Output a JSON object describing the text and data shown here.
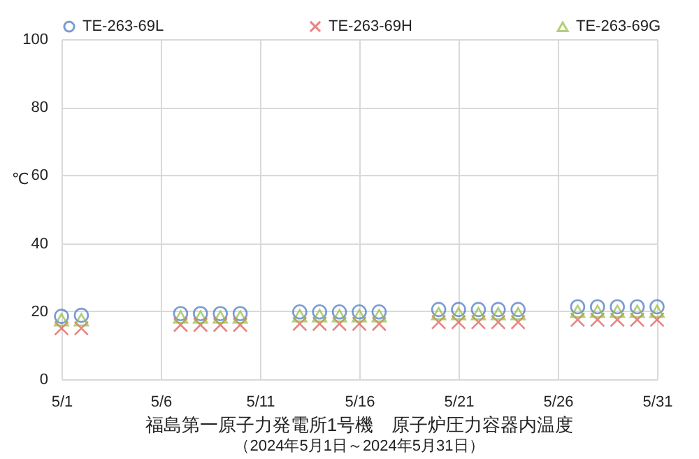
{
  "chart_data": {
    "type": "scatter",
    "title": "福島第一原子力発電所1号機　原子炉圧力容器内温度",
    "subtitle": "（2024年5月1日～2024年5月31日）",
    "ylabel": "℃",
    "x": [
      "2024-05-01",
      "2024-05-02",
      "2024-05-07",
      "2024-05-08",
      "2024-05-09",
      "2024-05-10",
      "2024-05-13",
      "2024-05-14",
      "2024-05-15",
      "2024-05-16",
      "2024-05-17",
      "2024-05-20",
      "2024-05-21",
      "2024-05-22",
      "2024-05-23",
      "2024-05-24",
      "2024-05-27",
      "2024-05-28",
      "2024-05-29",
      "2024-05-30",
      "2024-05-31"
    ],
    "series": [
      {
        "name": "TE-263-69L",
        "color": "#4472c4",
        "marker": "circle",
        "values": [
          18.5,
          18.8,
          19.3,
          19.3,
          19.3,
          19.3,
          19.8,
          19.8,
          19.8,
          19.8,
          19.8,
          20.5,
          20.5,
          20.5,
          20.5,
          20.5,
          21.3,
          21.3,
          21.3,
          21.3,
          21.3
        ]
      },
      {
        "name": "TE-263-69H",
        "color": "#e05050",
        "marker": "cross",
        "values": [
          15,
          15,
          16,
          16,
          16,
          16,
          16.3,
          16.3,
          16.3,
          16.3,
          16.3,
          16.8,
          16.8,
          16.8,
          16.8,
          16.8,
          17.5,
          17.5,
          17.5,
          17.5,
          17.5
        ]
      },
      {
        "name": "TE-263-69G",
        "color": "#8fbc3f",
        "marker": "triangle",
        "values": [
          17.5,
          17.5,
          18.3,
          18.3,
          18.3,
          18.3,
          18.7,
          18.7,
          18.7,
          18.7,
          18.7,
          19.3,
          19.3,
          19.3,
          19.3,
          19.3,
          20,
          20,
          20,
          20,
          20
        ]
      }
    ],
    "xlim": [
      "2024-05-01",
      "2024-05-31"
    ],
    "xticks": [
      {
        "value": "2024-05-01",
        "label": "5/1"
      },
      {
        "value": "2024-05-06",
        "label": "5/6"
      },
      {
        "value": "2024-05-11",
        "label": "5/11"
      },
      {
        "value": "2024-05-16",
        "label": "5/16"
      },
      {
        "value": "2024-05-21",
        "label": "5/21"
      },
      {
        "value": "2024-05-26",
        "label": "5/26"
      },
      {
        "value": "2024-05-31",
        "label": "5/31"
      }
    ],
    "ylim": [
      0,
      100
    ],
    "yticks": [
      0,
      20,
      40,
      60,
      80,
      100
    ],
    "grid": true,
    "legend": "top"
  }
}
